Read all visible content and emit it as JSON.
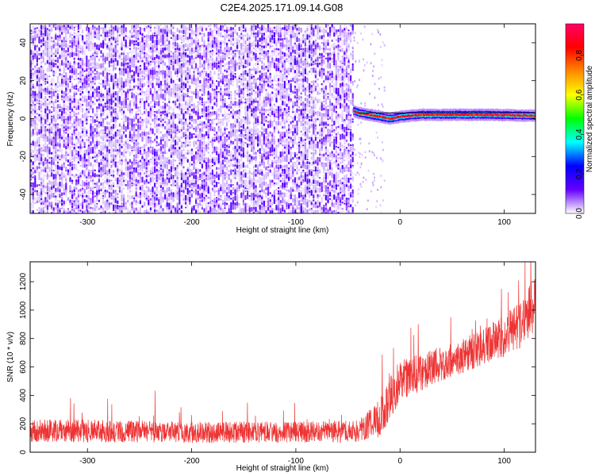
{
  "title": "C2E4.2025.171.09.14.G08",
  "chart_data": [
    {
      "type": "heatmap",
      "xlabel": "Height of straight line (km)",
      "ylabel": "Frequency (Hz)",
      "xlim": [
        -355,
        130
      ],
      "ylim": [
        -50,
        50
      ],
      "xticks": [
        -300,
        -200,
        -100,
        0,
        100
      ],
      "yticks": [
        -40,
        -20,
        0,
        20,
        40
      ],
      "colorbar": {
        "label": "Normalized spectral amplitude",
        "range": [
          0,
          0.96
        ],
        "ticks": [
          0.0,
          0.2,
          0.4,
          0.6,
          0.8
        ],
        "colors": [
          "#ffffff",
          "#6600ff",
          "#0000ff",
          "#00ffff",
          "#00ff00",
          "#ffff00",
          "#ff8800",
          "#ff0000",
          "#ff0066"
        ]
      },
      "noise_region": {
        "x": [
          -355,
          -45
        ],
        "freq": [
          -50,
          50
        ],
        "amplitude": [
          0.02,
          0.3
        ]
      },
      "signal_trace": [
        {
          "x": -45,
          "freq": 4
        },
        {
          "x": -40,
          "freq": 3
        },
        {
          "x": -30,
          "freq": 2
        },
        {
          "x": -20,
          "freq": 1
        },
        {
          "x": -10,
          "freq": 0
        },
        {
          "x": 0,
          "freq": 1
        },
        {
          "x": 20,
          "freq": 2
        },
        {
          "x": 50,
          "freq": 2
        },
        {
          "x": 85,
          "freq": 2
        },
        {
          "x": 130,
          "freq": 1.5
        }
      ],
      "signal_amplitude": 0.95
    },
    {
      "type": "line",
      "xlabel": "Height of straight line (km)",
      "ylabel": "SNR (10 * v/v)",
      "xlim": [
        -355,
        130
      ],
      "ylim": [
        0,
        1340
      ],
      "xticks": [
        -300,
        -200,
        -100,
        0,
        100
      ],
      "yticks": [
        0,
        200,
        400,
        600,
        800,
        1000,
        1200
      ],
      "color": "#ee3333",
      "x": [
        -355,
        -300,
        -200,
        -100,
        -40,
        -25,
        -10,
        0,
        25,
        50,
        75,
        100,
        115,
        130
      ],
      "y": [
        150,
        150,
        140,
        140,
        150,
        200,
        380,
        500,
        580,
        650,
        720,
        820,
        900,
        1050
      ],
      "noise_spread": [
        80,
        80,
        75,
        75,
        80,
        130,
        180,
        150,
        130,
        120,
        130,
        150,
        170,
        200
      ]
    }
  ]
}
